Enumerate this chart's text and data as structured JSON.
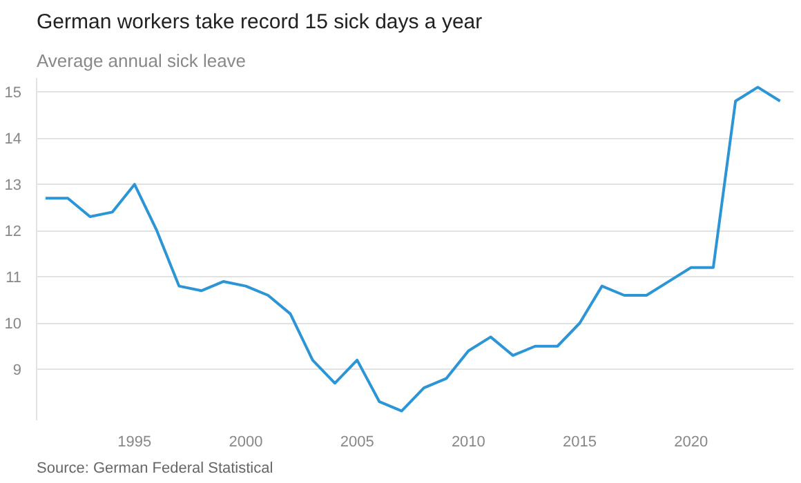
{
  "chart_data": {
    "type": "line",
    "title": "German workers take record 15 sick days a year",
    "subtitle": "Average annual sick leave",
    "annotations": [
      "Source: German Federal Statistical"
    ],
    "x": [
      1991,
      1992,
      1993,
      1994,
      1995,
      1996,
      1997,
      1998,
      1999,
      2000,
      2001,
      2002,
      2003,
      2004,
      2005,
      2006,
      2007,
      2008,
      2009,
      2010,
      2011,
      2012,
      2013,
      2014,
      2015,
      2016,
      2017,
      2018,
      2019,
      2020,
      2021,
      2022,
      2023,
      2024
    ],
    "series": [
      {
        "color": "#2b95d6",
        "values": [
          12.7,
          12.7,
          12.3,
          12.4,
          13.0,
          12.0,
          10.8,
          10.7,
          10.9,
          10.8,
          10.6,
          10.2,
          9.2,
          8.7,
          9.2,
          8.3,
          8.1,
          8.6,
          8.8,
          9.4,
          9.7,
          9.3,
          9.5,
          9.5,
          10.0,
          10.8,
          10.6,
          10.6,
          10.9,
          11.2,
          11.2,
          14.8,
          15.1,
          14.8
        ]
      }
    ],
    "xlim": [
      1990.6,
      2024.6
    ],
    "ylim": [
      7.9,
      15.3
    ],
    "xticks": [
      1995,
      2000,
      2005,
      2010,
      2015,
      2020
    ],
    "yticks": [
      9,
      10,
      11,
      12,
      13,
      14,
      15
    ],
    "grid": "y",
    "marker": "none",
    "line_style": "solid"
  }
}
